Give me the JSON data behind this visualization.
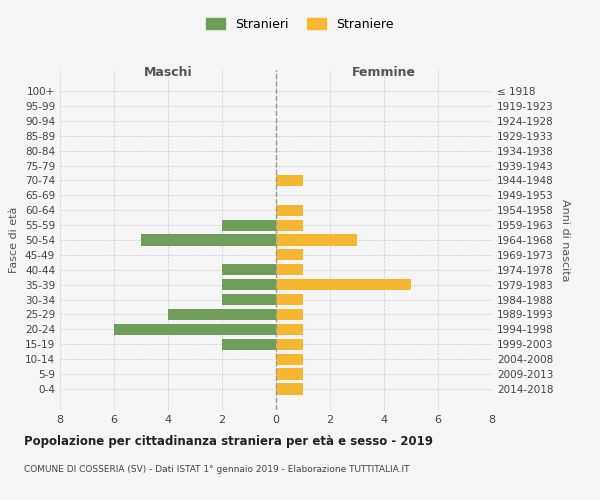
{
  "age_groups": [
    "100+",
    "95-99",
    "90-94",
    "85-89",
    "80-84",
    "75-79",
    "70-74",
    "65-69",
    "60-64",
    "55-59",
    "50-54",
    "45-49",
    "40-44",
    "35-39",
    "30-34",
    "25-29",
    "20-24",
    "15-19",
    "10-14",
    "5-9",
    "0-4"
  ],
  "birth_years": [
    "≤ 1918",
    "1919-1923",
    "1924-1928",
    "1929-1933",
    "1934-1938",
    "1939-1943",
    "1944-1948",
    "1949-1953",
    "1954-1958",
    "1959-1963",
    "1964-1968",
    "1969-1973",
    "1974-1978",
    "1979-1983",
    "1984-1988",
    "1989-1993",
    "1994-1998",
    "1999-2003",
    "2004-2008",
    "2009-2013",
    "2014-2018"
  ],
  "maschi": [
    0,
    0,
    0,
    0,
    0,
    0,
    0,
    0,
    0,
    2,
    5,
    0,
    2,
    2,
    2,
    4,
    6,
    2,
    0,
    0,
    0
  ],
  "femmine": [
    0,
    0,
    0,
    0,
    0,
    0,
    1,
    0,
    1,
    1,
    3,
    1,
    1,
    5,
    1,
    1,
    1,
    1,
    1,
    1,
    1
  ],
  "maschi_color": "#6f9e5a",
  "femmine_color": "#f5b731",
  "title": "Popolazione per cittadinanza straniera per età e sesso - 2019",
  "subtitle": "COMUNE DI COSSERIA (SV) - Dati ISTAT 1° gennaio 2019 - Elaborazione TUTTITALIA.IT",
  "xlabel_left": "Maschi",
  "xlabel_right": "Femmine",
  "ylabel_left": "Fasce di età",
  "ylabel_right": "Anni di nascita",
  "legend_maschi": "Stranieri",
  "legend_femmine": "Straniere",
  "xlim": 8,
  "background_color": "#f5f5f5",
  "grid_color": "#cccccc",
  "bar_height": 0.75
}
